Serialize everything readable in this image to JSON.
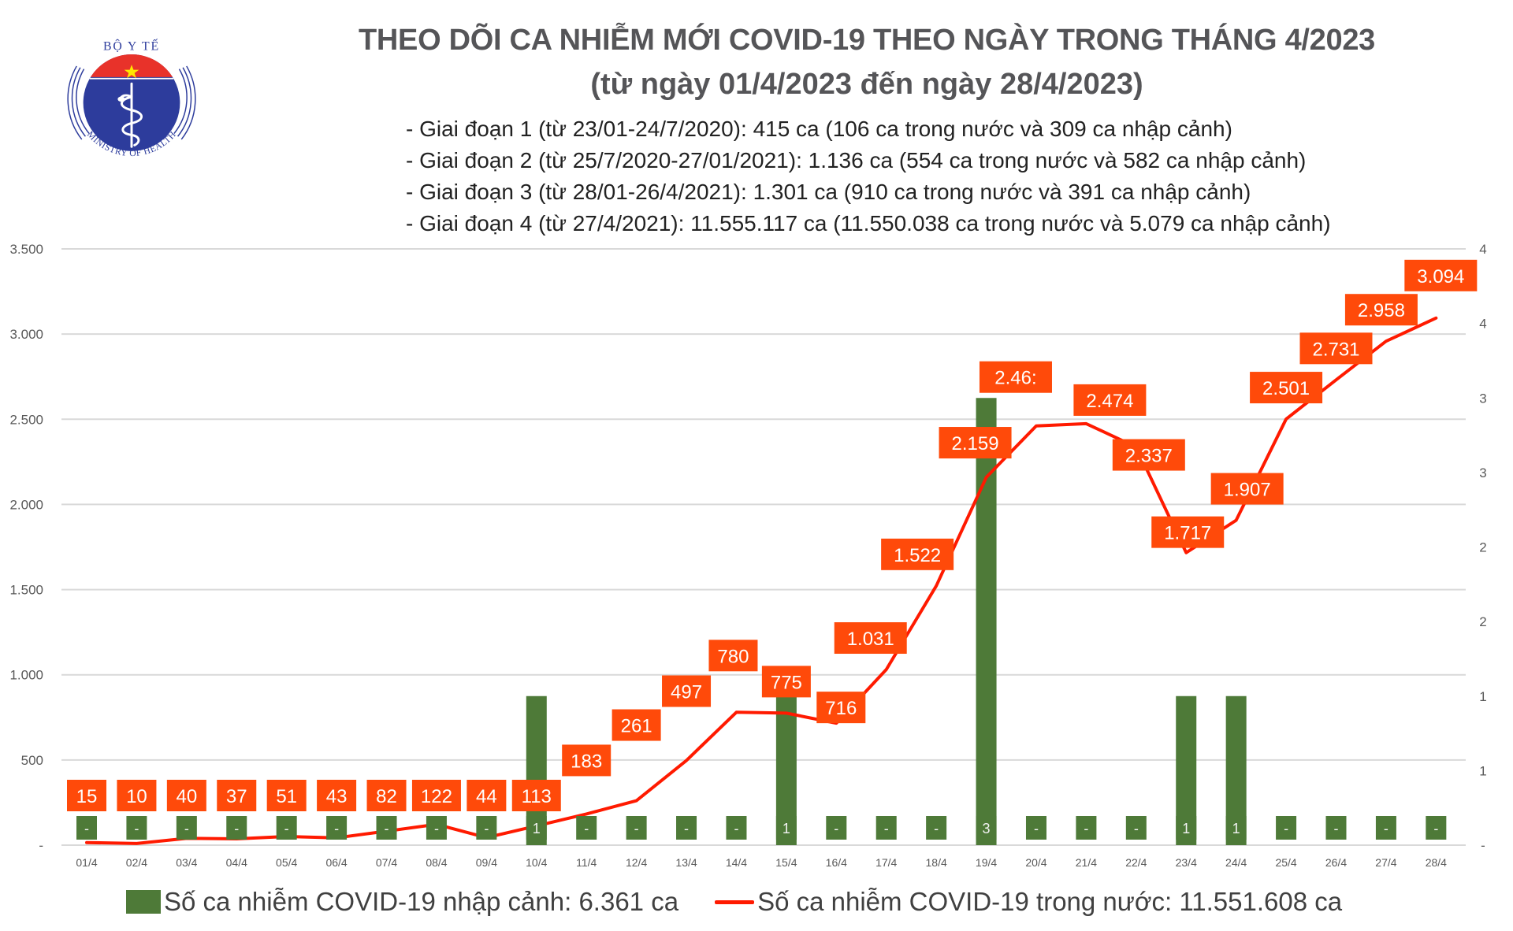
{
  "logo": {
    "top_text": "BỘ Y TẾ",
    "bottom_text": "MINISTRY OF HEALTH",
    "colors": {
      "red": "#e8322a",
      "blue": "#2d3c9c",
      "star": "#ffe600"
    }
  },
  "title": {
    "line1": "THEO DÕI CA NHIỄM MỚI COVID-19 THEO NGÀY TRONG THÁNG 4/2023",
    "line2": "(từ ngày 01/4/2023 đến ngày 28/4/2023)"
  },
  "info_lines": [
    "- Giai đoạn 1 (từ 23/01-24/7/2020): 415 ca (106 ca trong nước và 309 ca nhập cảnh)",
    "- Giai đoạn 2 (từ 25/7/2020-27/01/2021): 1.136 ca (554 ca trong nước và 582 ca nhập cảnh)",
    "- Giai đoạn 3 (từ 28/01-26/4/2021): 1.301 ca (910 ca trong nước và 391 ca nhập cảnh)",
    "- Giai đoạn 4 (từ 27/4/2021): 11.555.117 ca (11.550.038 ca trong nước và 5.079 ca nhập cảnh)"
  ],
  "legend": {
    "bar_label": "Số ca nhiễm COVID-19 nhập cảnh: 6.361 ca",
    "line_label": "Số ca nhiễm COVID-19 trong nước: 11.551.608 ca"
  },
  "chart_data": {
    "type": "bar+line",
    "title": "THEO DÕI CA NHIỄM MỚI COVID-19 THEO NGÀY TRONG THÁNG 4/2023",
    "subtitle": "(từ ngày 01/4/2023 đến ngày 28/4/2023)",
    "categories": [
      "01/4",
      "02/4",
      "03/4",
      "04/4",
      "05/4",
      "06/4",
      "07/4",
      "08/4",
      "09/4",
      "10/4",
      "11/4",
      "12/4",
      "13/4",
      "14/4",
      "15/4",
      "16/4",
      "17/4",
      "18/4",
      "19/4",
      "20/4",
      "21/4",
      "22/4",
      "23/4",
      "24/4",
      "25/4",
      "26/4",
      "27/4",
      "28/4"
    ],
    "series": [
      {
        "name": "Số ca nhiễm COVID-19 nhập cảnh",
        "type": "bar",
        "axis": "right",
        "color": "#4e7a38",
        "values": [
          0,
          0,
          0,
          0,
          0,
          0,
          0,
          0,
          0,
          1,
          0,
          0,
          0,
          0,
          1,
          0,
          0,
          0,
          3,
          0,
          0,
          0,
          1,
          1,
          0,
          0,
          0,
          0
        ],
        "labels": [
          "-",
          "-",
          "-",
          "-",
          "-",
          "-",
          "-",
          "-",
          "-",
          "1",
          "-",
          "-",
          "-",
          "-",
          "1",
          "-",
          "-",
          "-",
          "3",
          "-",
          "-",
          "-",
          "1",
          "1",
          "-",
          "-",
          "-",
          "-"
        ]
      },
      {
        "name": "Số ca nhiễm COVID-19 trong nước",
        "type": "line",
        "axis": "left",
        "color": "#ff1a00",
        "label_color": "#ff4a0a",
        "values": [
          15,
          10,
          40,
          37,
          51,
          43,
          82,
          122,
          44,
          113,
          183,
          261,
          497,
          780,
          775,
          716,
          1031,
          1522,
          2159,
          2461,
          2474,
          2337,
          1717,
          1907,
          2501,
          2731,
          2958,
          3094
        ],
        "labels": [
          "15",
          "10",
          "40",
          "37",
          "51",
          "43",
          "82",
          "122",
          "44",
          "113",
          "183",
          "261",
          "497",
          "780",
          "775",
          "716",
          "1.031",
          "1.522",
          "2.159",
          "2.46:",
          "2.474",
          "2.337",
          "1.717",
          "1.907",
          "2.501",
          "2.731",
          "2.958",
          "3.094"
        ]
      }
    ],
    "left_axis": {
      "ylim": [
        0,
        3500
      ],
      "ticks": [
        0,
        500,
        1000,
        1500,
        2000,
        2500,
        3000,
        3500
      ],
      "tick_labels": [
        "-",
        "500",
        "1.000",
        "1.500",
        "2.000",
        "2.500",
        "3.000",
        "3.500"
      ]
    },
    "right_axis": {
      "ylim": [
        0,
        4
      ],
      "ticks": [
        0,
        0.5,
        1,
        1.5,
        2,
        2.5,
        3,
        3.5,
        4
      ],
      "tick_labels": [
        "-",
        "1",
        "1",
        "2",
        "2",
        "3",
        "3",
        "4",
        "4"
      ]
    },
    "grid": true,
    "legend_position": "bottom",
    "xlabel": "",
    "ylabel": ""
  }
}
